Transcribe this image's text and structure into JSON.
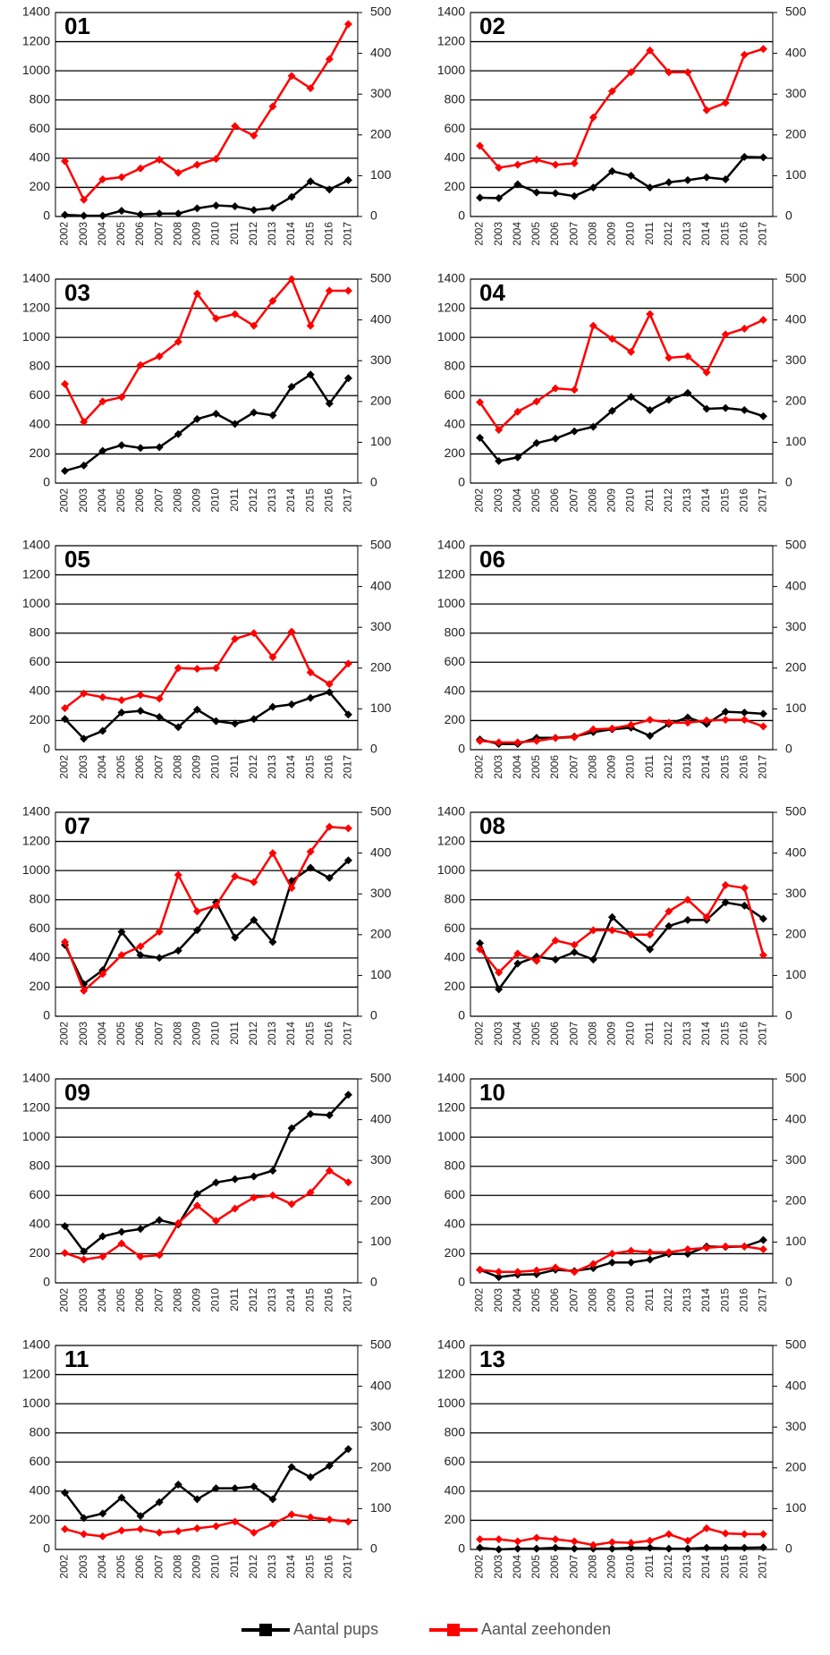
{
  "legend": [
    {
      "name": "Aantal pups",
      "color": "#000000"
    },
    {
      "name": "Aantal zeehonden",
      "color": "#ff0000"
    }
  ],
  "chart_data": [
    {
      "type": "line",
      "title": "01",
      "categories": [
        "2002",
        "2003",
        "2004",
        "2005",
        "2006",
        "2007",
        "2008",
        "2009",
        "2010",
        "2011",
        "2012",
        "2013",
        "2014",
        "2015",
        "2016",
        "2017"
      ],
      "series": [
        {
          "axis": "y2",
          "values": [
            4,
            2,
            2,
            14,
            5,
            7,
            7,
            20,
            27,
            25,
            16,
            21,
            48,
            86,
            66,
            89
          ]
        },
        {
          "axis": "y",
          "values": [
            380,
            115,
            255,
            270,
            330,
            390,
            300,
            355,
            395,
            620,
            555,
            755,
            965,
            880,
            1080,
            1320
          ]
        }
      ],
      "ylim": [
        0,
        1400
      ],
      "yticks": [
        0,
        200,
        400,
        600,
        800,
        1000,
        1200,
        1400
      ],
      "y2lim": [
        0,
        500
      ],
      "y2ticks": [
        0,
        100,
        200,
        300,
        400,
        500
      ],
      "grid": true
    },
    {
      "type": "line",
      "title": "02",
      "categories": [
        "2002",
        "2003",
        "2004",
        "2005",
        "2006",
        "2007",
        "2008",
        "2009",
        "2010",
        "2011",
        "2012",
        "2013",
        "2014",
        "2015",
        "2016",
        "2017"
      ],
      "series": [
        {
          "axis": "y2",
          "values": [
            46,
            45,
            79,
            59,
            57,
            50,
            71,
            111,
            100,
            71,
            84,
            89,
            96,
            91,
            146,
            145
          ]
        },
        {
          "axis": "y",
          "values": [
            485,
            335,
            355,
            390,
            355,
            365,
            680,
            860,
            990,
            1140,
            990,
            990,
            730,
            780,
            1110,
            1150
          ]
        }
      ],
      "ylim": [
        0,
        1400
      ],
      "yticks": [
        0,
        200,
        400,
        600,
        800,
        1000,
        1200,
        1400
      ],
      "y2lim": [
        0,
        500
      ],
      "y2ticks": [
        0,
        100,
        200,
        300,
        400,
        500
      ],
      "grid": true
    },
    {
      "type": "line",
      "title": "03",
      "categories": [
        "2002",
        "2003",
        "2004",
        "2005",
        "2006",
        "2007",
        "2008",
        "2009",
        "2010",
        "2011",
        "2012",
        "2013",
        "2014",
        "2015",
        "2016",
        "2017"
      ],
      "series": [
        {
          "axis": "y2",
          "values": [
            30,
            43,
            79,
            93,
            86,
            88,
            120,
            157,
            170,
            145,
            173,
            166,
            236,
            266,
            195,
            257
          ]
        },
        {
          "axis": "y",
          "values": [
            680,
            420,
            560,
            590,
            810,
            870,
            970,
            1300,
            1130,
            1160,
            1080,
            1250,
            1400,
            1080,
            1320,
            1320
          ]
        }
      ],
      "ylim": [
        0,
        1400
      ],
      "yticks": [
        0,
        200,
        400,
        600,
        800,
        1000,
        1200,
        1400
      ],
      "y2lim": [
        0,
        500
      ],
      "y2ticks": [
        0,
        100,
        200,
        300,
        400,
        500
      ],
      "grid": true
    },
    {
      "type": "line",
      "title": "04",
      "categories": [
        "2002",
        "2003",
        "2004",
        "2005",
        "2006",
        "2007",
        "2008",
        "2009",
        "2010",
        "2011",
        "2012",
        "2013",
        "2014",
        "2015",
        "2016",
        "2017"
      ],
      "series": [
        {
          "axis": "y2",
          "values": [
            111,
            54,
            63,
            98,
            109,
            127,
            138,
            177,
            211,
            179,
            204,
            221,
            182,
            184,
            179,
            164
          ]
        },
        {
          "axis": "y",
          "values": [
            555,
            365,
            490,
            560,
            650,
            640,
            1080,
            990,
            900,
            1160,
            860,
            870,
            760,
            1020,
            1060,
            1120
          ]
        }
      ],
      "ylim": [
        0,
        1400
      ],
      "yticks": [
        0,
        200,
        400,
        600,
        800,
        1000,
        1200,
        1400
      ],
      "y2lim": [
        0,
        500
      ],
      "y2ticks": [
        0,
        100,
        200,
        300,
        400,
        500
      ],
      "grid": true
    },
    {
      "type": "line",
      "title": "05",
      "categories": [
        "2002",
        "2003",
        "2004",
        "2005",
        "2006",
        "2007",
        "2008",
        "2009",
        "2010",
        "2011",
        "2012",
        "2013",
        "2014",
        "2015",
        "2016",
        "2017"
      ],
      "series": [
        {
          "axis": "y2",
          "values": [
            75,
            27,
            46,
            91,
            95,
            80,
            55,
            98,
            70,
            64,
            75,
            105,
            111,
            127,
            141,
            86
          ]
        },
        {
          "axis": "y",
          "values": [
            285,
            385,
            360,
            340,
            375,
            350,
            560,
            555,
            560,
            760,
            800,
            635,
            810,
            530,
            450,
            590
          ]
        }
      ],
      "ylim": [
        0,
        1400
      ],
      "yticks": [
        0,
        200,
        400,
        600,
        800,
        1000,
        1200,
        1400
      ],
      "y2lim": [
        0,
        500
      ],
      "y2ticks": [
        0,
        100,
        200,
        300,
        400,
        500
      ],
      "grid": true
    },
    {
      "type": "line",
      "title": "06",
      "categories": [
        "2002",
        "2003",
        "2004",
        "2005",
        "2006",
        "2007",
        "2008",
        "2009",
        "2010",
        "2011",
        "2012",
        "2013",
        "2014",
        "2015",
        "2016",
        "2017"
      ],
      "series": [
        {
          "axis": "y2",
          "values": [
            25,
            14,
            14,
            29,
            29,
            32,
            43,
            50,
            54,
            34,
            63,
            79,
            63,
            93,
            91,
            88
          ]
        },
        {
          "axis": "y",
          "values": [
            60,
            50,
            50,
            60,
            80,
            85,
            140,
            145,
            170,
            205,
            185,
            185,
            200,
            205,
            205,
            160
          ]
        }
      ],
      "ylim": [
        0,
        1400
      ],
      "yticks": [
        0,
        200,
        400,
        600,
        800,
        1000,
        1200,
        1400
      ],
      "y2lim": [
        0,
        500
      ],
      "y2ticks": [
        0,
        100,
        200,
        300,
        400,
        500
      ],
      "grid": true
    },
    {
      "type": "line",
      "title": "07",
      "categories": [
        "2002",
        "2003",
        "2004",
        "2005",
        "2006",
        "2007",
        "2008",
        "2009",
        "2010",
        "2011",
        "2012",
        "2013",
        "2014",
        "2015",
        "2016",
        "2017"
      ],
      "series": [
        {
          "axis": "y2",
          "values": [
            175,
            79,
            113,
            207,
            150,
            143,
            161,
            211,
            279,
            193,
            236,
            182,
            332,
            364,
            339,
            382
          ]
        },
        {
          "axis": "y",
          "values": [
            510,
            175,
            290,
            420,
            480,
            580,
            970,
            720,
            760,
            960,
            920,
            1120,
            880,
            1130,
            1300,
            1290
          ]
        }
      ],
      "ylim": [
        0,
        1400
      ],
      "yticks": [
        0,
        200,
        400,
        600,
        800,
        1000,
        1200,
        1400
      ],
      "y2lim": [
        0,
        500
      ],
      "y2ticks": [
        0,
        100,
        200,
        300,
        400,
        500
      ],
      "grid": true
    },
    {
      "type": "line",
      "title": "08",
      "categories": [
        "2002",
        "2003",
        "2004",
        "2005",
        "2006",
        "2007",
        "2008",
        "2009",
        "2010",
        "2011",
        "2012",
        "2013",
        "2014",
        "2015",
        "2016",
        "2017"
      ],
      "series": [
        {
          "axis": "y2",
          "values": [
            179,
            66,
            129,
            146,
            139,
            157,
            139,
            243,
            200,
            164,
            221,
            236,
            236,
            279,
            271,
            239
          ]
        },
        {
          "axis": "y",
          "values": [
            460,
            300,
            430,
            380,
            520,
            490,
            590,
            590,
            560,
            560,
            720,
            800,
            680,
            900,
            880,
            420
          ]
        }
      ],
      "ylim": [
        0,
        1400
      ],
      "yticks": [
        0,
        200,
        400,
        600,
        800,
        1000,
        1200,
        1400
      ],
      "y2lim": [
        0,
        500
      ],
      "y2ticks": [
        0,
        100,
        200,
        300,
        400,
        500
      ],
      "grid": true
    },
    {
      "type": "line",
      "title": "09",
      "categories": [
        "2002",
        "2003",
        "2004",
        "2005",
        "2006",
        "2007",
        "2008",
        "2009",
        "2010",
        "2011",
        "2012",
        "2013",
        "2014",
        "2015",
        "2016",
        "2017"
      ],
      "series": [
        {
          "axis": "y2",
          "values": [
            139,
            77,
            114,
            125,
            132,
            154,
            143,
            218,
            246,
            254,
            261,
            275,
            379,
            414,
            411,
            461
          ]
        },
        {
          "axis": "y",
          "values": [
            205,
            160,
            180,
            270,
            180,
            190,
            410,
            530,
            425,
            510,
            585,
            600,
            540,
            620,
            770,
            690
          ]
        }
      ],
      "ylim": [
        0,
        1400
      ],
      "yticks": [
        0,
        200,
        400,
        600,
        800,
        1000,
        1200,
        1400
      ],
      "y2lim": [
        0,
        500
      ],
      "y2ticks": [
        0,
        100,
        200,
        300,
        400,
        500
      ],
      "grid": true
    },
    {
      "type": "line",
      "title": "10",
      "categories": [
        "2002",
        "2003",
        "2004",
        "2005",
        "2006",
        "2007",
        "2008",
        "2009",
        "2010",
        "2011",
        "2012",
        "2013",
        "2014",
        "2015",
        "2016",
        "2017"
      ],
      "series": [
        {
          "axis": "y2",
          "values": [
            32,
            14,
            20,
            21,
            32,
            29,
            36,
            50,
            50,
            57,
            71,
            71,
            89,
            88,
            89,
            105
          ]
        },
        {
          "axis": "y",
          "values": [
            90,
            75,
            75,
            85,
            105,
            75,
            130,
            200,
            220,
            210,
            210,
            230,
            240,
            250,
            250,
            230
          ]
        }
      ],
      "ylim": [
        0,
        1400
      ],
      "yticks": [
        0,
        200,
        400,
        600,
        800,
        1000,
        1200,
        1400
      ],
      "y2lim": [
        0,
        500
      ],
      "y2ticks": [
        0,
        100,
        200,
        300,
        400,
        500
      ],
      "grid": true
    },
    {
      "type": "line",
      "title": "11",
      "categories": [
        "2002",
        "2003",
        "2004",
        "2005",
        "2006",
        "2007",
        "2008",
        "2009",
        "2010",
        "2011",
        "2012",
        "2013",
        "2014",
        "2015",
        "2016",
        "2017"
      ],
      "series": [
        {
          "axis": "y2",
          "values": [
            139,
            77,
            88,
            127,
            82,
            116,
            159,
            123,
            150,
            150,
            154,
            123,
            202,
            177,
            205,
            246
          ]
        },
        {
          "axis": "y",
          "values": [
            140,
            105,
            90,
            130,
            140,
            115,
            125,
            145,
            160,
            190,
            115,
            175,
            240,
            220,
            205,
            190
          ]
        }
      ],
      "ylim": [
        0,
        1400
      ],
      "yticks": [
        0,
        200,
        400,
        600,
        800,
        1000,
        1200,
        1400
      ],
      "y2lim": [
        0,
        500
      ],
      "y2ticks": [
        0,
        100,
        200,
        300,
        400,
        500
      ],
      "grid": true
    },
    {
      "type": "line",
      "title": "13",
      "categories": [
        "2002",
        "2003",
        "2004",
        "2005",
        "2006",
        "2007",
        "2008",
        "2009",
        "2010",
        "2011",
        "2012",
        "2013",
        "2014",
        "2015",
        "2016",
        "2017"
      ],
      "series": [
        {
          "axis": "y2",
          "values": [
            4,
            0,
            2,
            2,
            4,
            2,
            2,
            2,
            4,
            4,
            2,
            2,
            4,
            4,
            4,
            5
          ]
        },
        {
          "axis": "y",
          "values": [
            70,
            70,
            55,
            80,
            70,
            55,
            30,
            50,
            45,
            60,
            105,
            60,
            145,
            110,
            105,
            105
          ]
        }
      ],
      "ylim": [
        0,
        1400
      ],
      "yticks": [
        0,
        200,
        400,
        600,
        800,
        1000,
        1200,
        1400
      ],
      "y2lim": [
        0,
        500
      ],
      "y2ticks": [
        0,
        100,
        200,
        300,
        400,
        500
      ],
      "grid": true
    }
  ]
}
